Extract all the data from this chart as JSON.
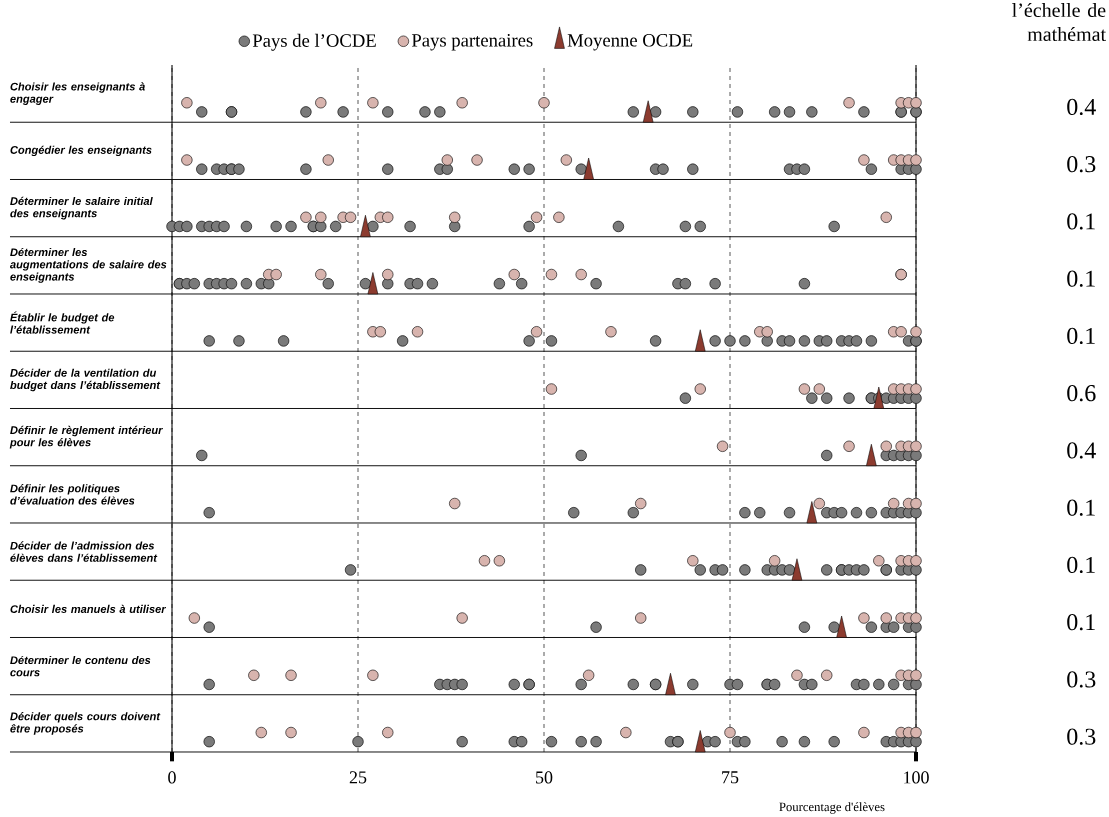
{
  "chart_data": {
    "type": "scatter",
    "orientation": "horizontal",
    "xlabel": "Pourcentage d'élèves",
    "categories": [
      "Choisir les enseignants à engager",
      "Congédier les enseignants",
      "Déterminer le salaire initial des enseignants",
      "Déterminer les augmentations de salaire des enseignants",
      "Établir le budget de l’établissement",
      "Décider de la ventilation du budget dans l’établissement",
      "Définir le règlement intérieur pour les élèves",
      "Définir les politiques d’évaluation des élèves",
      "Décider de l’admission des élèves dans l’établissement",
      "Choisir les manuels à utiliser",
      "Déterminer le contenu des cours",
      "Décider quels cours doivent être proposés"
    ],
    "xlim": [
      0,
      100
    ],
    "xticks": [
      0,
      25,
      50,
      75,
      100
    ],
    "grid": "x",
    "legend": "top",
    "annotations": [
      "l’échelle de mathémat",
      "0.4",
      "0.3",
      "0.1",
      "0.1",
      "0.1",
      "0.6",
      "0.4",
      "0.1",
      "0.1",
      "0.1",
      "0.3",
      "0.3"
    ],
    "series": [
      {
        "name": "Pays de l’OCDE",
        "color": "#7a7a7a",
        "marker": "circle",
        "x": [
          "Choisir les enseignants à engager",
          "Choisir les enseignants à engager",
          "Choisir les enseignants à engager",
          "Choisir les enseignants à engager",
          "Choisir les enseignants à engager",
          "Choisir les enseignants à engager",
          "Choisir les enseignants à engager",
          "Choisir les enseignants à engager",
          "Choisir les enseignants à engager",
          "Choisir les enseignants à engager",
          "Choisir les enseignants à engager",
          "Choisir les enseignants à engager",
          "Choisir les enseignants à engager",
          "Choisir les enseignants à engager",
          "Choisir les enseignants à engager",
          "Choisir les enseignants à engager",
          "Choisir les enseignants à engager",
          "Choisir les enseignants à engager",
          "Choisir les enseignants à engager",
          "Choisir les enseignants à engager",
          "Congédier les enseignants",
          "Congédier les enseignants",
          "Congédier les enseignants",
          "Congédier les enseignants",
          "Congédier les enseignants",
          "Congédier les enseignants",
          "Congédier les enseignants",
          "Congédier les enseignants",
          "Congédier les enseignants",
          "Congédier les enseignants",
          "Congédier les enseignants",
          "Congédier les enseignants",
          "Congédier les enseignants",
          "Congédier les enseignants",
          "Congédier les enseignants",
          "Congédier les enseignants",
          "Congédier les enseignants",
          "Congédier les enseignants",
          "Congédier les enseignants",
          "Congédier les enseignants",
          "Congédier les enseignants",
          "Congédier les enseignants",
          "Congédier les enseignants",
          "Déterminer le salaire initial des enseignants",
          "Déterminer le salaire initial des enseignants",
          "Déterminer le salaire initial des enseignants",
          "Déterminer le salaire initial des enseignants",
          "Déterminer le salaire initial des enseignants",
          "Déterminer le salaire initial des enseignants",
          "Déterminer le salaire initial des enseignants",
          "Déterminer le salaire initial des enseignants",
          "Déterminer le salaire initial des enseignants",
          "Déterminer le salaire initial des enseignants",
          "Déterminer le salaire initial des enseignants",
          "Déterminer le salaire initial des enseignants",
          "Déterminer le salaire initial des enseignants",
          "Déterminer le salaire initial des enseignants",
          "Déterminer le salaire initial des enseignants",
          "Déterminer le salaire initial des enseignants",
          "Déterminer le salaire initial des enseignants",
          "Déterminer le salaire initial des enseignants",
          "Déterminer le salaire initial des enseignants",
          "Déterminer le salaire initial des enseignants",
          "Déterminer le salaire initial des enseignants",
          "Déterminer le salaire initial des enseignants",
          "Déterminer les augmentations de salaire des enseignants",
          "Déterminer les augmentations de salaire des enseignants",
          "Déterminer les augmentations de salaire des enseignants",
          "Déterminer les augmentations de salaire des enseignants",
          "Déterminer les augmentations de salaire des enseignants",
          "Déterminer les augmentations de salaire des enseignants",
          "Déterminer les augmentations de salaire des enseignants",
          "Déterminer les augmentations de salaire des enseignants",
          "Déterminer les augmentations de salaire des enseignants",
          "Déterminer les augmentations de salaire des enseignants",
          "Déterminer les augmentations de salaire des enseignants",
          "Déterminer les augmentations de salaire des enseignants",
          "Déterminer les augmentations de salaire des enseignants",
          "Déterminer les augmentations de salaire des enseignants",
          "Déterminer les augmentations de salaire des enseignants",
          "Déterminer les augmentations de salaire des enseignants",
          "Déterminer les augmentations de salaire des enseignants",
          "Déterminer les augmentations de salaire des enseignants",
          "Déterminer les augmentations de salaire des enseignants",
          "Déterminer les augmentations de salaire des enseignants",
          "Déterminer les augmentations de salaire des enseignants",
          "Déterminer les augmentations de salaire des enseignants",
          "Déterminer les augmentations de salaire des enseignants",
          "Déterminer les augmentations de salaire des enseignants",
          "Établir le budget de l’établissement",
          "Établir le budget de l’établissement",
          "Établir le budget de l’établissement",
          "Établir le budget de l’établissement",
          "Établir le budget de l’établissement",
          "Établir le budget de l’établissement",
          "Établir le budget de l’établissement",
          "Établir le budget de l’établissement",
          "Établir le budget de l’établissement",
          "Établir le budget de l’établissement",
          "Établir le budget de l’établissement",
          "Établir le budget de l’établissement",
          "Établir le budget de l’établissement",
          "Établir le budget de l’établissement",
          "Établir le budget de l’établissement",
          "Établir le budget de l’établissement",
          "Établir le budget de l’établissement",
          "Établir le budget de l’établissement",
          "Établir le budget de l’établissement",
          "Établir le budget de l’établissement",
          "Établir le budget de l’établissement",
          "Établir le budget de l’établissement",
          "Établir le budget de l’établissement",
          "Décider de la ventilation du budget dans l’établissement",
          "Décider de la ventilation du budget dans l’établissement",
          "Décider de la ventilation du budget dans l’établissement",
          "Décider de la ventilation du budget dans l’établissement",
          "Décider de la ventilation du budget dans l’établissement",
          "Décider de la ventilation du budget dans l’établissement",
          "Décider de la ventilation du budget dans l’établissement",
          "Décider de la ventilation du budget dans l’établissement",
          "Décider de la ventilation du budget dans l’établissement",
          "Décider de la ventilation du budget dans l’établissement",
          "Décider de la ventilation du budget dans l’établissement",
          "Décider de la ventilation du budget dans l’établissement",
          "Définir le règlement intérieur pour les élèves",
          "Définir le règlement intérieur pour les élèves",
          "Définir le règlement intérieur pour les élèves",
          "Définir le règlement intérieur pour les élèves",
          "Définir le règlement intérieur pour les élèves",
          "Définir le règlement intérieur pour les élèves",
          "Définir le règlement intérieur pour les élèves",
          "Définir le règlement intérieur pour les élèves",
          "Définir les politiques d’évaluation des élèves",
          "Définir les politiques d’évaluation des élèves",
          "Définir les politiques d’évaluation des élèves",
          "Définir les politiques d’évaluation des élèves",
          "Définir les politiques d’évaluation des élèves",
          "Définir les politiques d’évaluation des élèves",
          "Définir les politiques d’évaluation des élèves",
          "Définir les politiques d’évaluation des élèves",
          "Définir les politiques d’évaluation des élèves",
          "Définir les politiques d’évaluation des élèves",
          "Définir les politiques d’évaluation des élèves",
          "Définir les politiques d’évaluation des élèves",
          "Définir les politiques d’évaluation des élèves",
          "Définir les politiques d’évaluation des élèves",
          "Définir les politiques d’évaluation des élèves",
          "Définir les politiques d’évaluation des élèves",
          "Décider de l’admission des élèves dans l’établissement",
          "Décider de l’admission des élèves dans l’établissement",
          "Décider de l’admission des élèves dans l’établissement",
          "Décider de l’admission des élèves dans l’établissement",
          "Décider de l’admission des élèves dans l’établissement",
          "Décider de l’admission des élèves dans l’établissement",
          "Décider de l’admission des élèves dans l’établissement",
          "Décider de l’admission des élèves dans l’établissement",
          "Décider de l’admission des élèves dans l’établissement",
          "Décider de l’admission des élèves dans l’établissement",
          "Décider de l’admission des élèves dans l’établissement",
          "Décider de l’admission des élèves dans l’établissement",
          "Décider de l’admission des élèves dans l’établissement",
          "Décider de l’admission des élèves dans l’établissement",
          "Décider de l’admission des élèves dans l’établissement",
          "Décider de l’admission des élèves dans l’établissement",
          "Décider de l’admission des élèves dans l’établissement",
          "Décider de l’admission des élèves dans l’établissement",
          "Décider de l’admission des élèves dans l’établissement",
          "Décider de l’admission des élèves dans l’établissement",
          "Décider de l’admission des élèves dans l’établissement",
          "Choisir les manuels à utiliser",
          "Choisir les manuels à utiliser",
          "Choisir les manuels à utiliser",
          "Choisir les manuels à utiliser",
          "Choisir les manuels à utiliser",
          "Choisir les manuels à utiliser",
          "Choisir les manuels à utiliser",
          "Choisir les manuels à utiliser",
          "Choisir les manuels à utiliser",
          "Déterminer le contenu des cours",
          "Déterminer le contenu des cours",
          "Déterminer le contenu des cours",
          "Déterminer le contenu des cours",
          "Déterminer le contenu des cours",
          "Déterminer le contenu des cours",
          "Déterminer le contenu des cours",
          "Déterminer le contenu des cours",
          "Déterminer le contenu des cours",
          "Déterminer le contenu des cours",
          "Déterminer le contenu des cours",
          "Déterminer le contenu des cours",
          "Déterminer le contenu des cours",
          "Déterminer le contenu des cours",
          "Déterminer le contenu des cours",
          "Déterminer le contenu des cours",
          "Déterminer le contenu des cours",
          "Déterminer le contenu des cours",
          "Déterminer le contenu des cours",
          "Déterminer le contenu des cours",
          "Déterminer le contenu des cours",
          "Déterminer le contenu des cours",
          "Déterminer le contenu des cours",
          "Déterminer le contenu des cours",
          "Déterminer le contenu des cours",
          "Déterminer le contenu des cours",
          "Décider quels cours doivent être proposés",
          "Décider quels cours doivent être proposés",
          "Décider quels cours doivent être proposés",
          "Décider quels cours doivent être proposés",
          "Décider quels cours doivent être proposés",
          "Décider quels cours doivent être proposés",
          "Décider quels cours doivent être proposés",
          "Décider quels cours doivent être proposés",
          "Décider quels cours doivent être proposés",
          "Décider quels cours doivent être proposés",
          "Décider quels cours doivent être proposés",
          "Décider quels cours doivent être proposés",
          "Décider quels cours doivent être proposés",
          "Décider quels cours doivent être proposés",
          "Décider quels cours doivent être proposés",
          "Décider quels cours doivent être proposés",
          "Décider quels cours doivent être proposés",
          "Décider quels cours doivent être proposés",
          "Décider quels cours doivent être proposés",
          "Décider quels cours doivent être proposés",
          "Décider quels cours doivent être proposés",
          "Décider quels cours doivent être proposés",
          "Décider quels cours doivent être proposés"
        ],
        "values": [
          4,
          8,
          8,
          18,
          23,
          29,
          34,
          36,
          62,
          65,
          70,
          76,
          81,
          83,
          86,
          93,
          98,
          98,
          100,
          100,
          4,
          6,
          7,
          8,
          8,
          9,
          18,
          29,
          36,
          37,
          46,
          48,
          55,
          65,
          66,
          70,
          83,
          84,
          85,
          94,
          98,
          99,
          100,
          0,
          1,
          2,
          4,
          5,
          6,
          7,
          10,
          14,
          16,
          19,
          19,
          20,
          22,
          27,
          32,
          38,
          48,
          60,
          69,
          71,
          89,
          1,
          1,
          2,
          3,
          5,
          6,
          7,
          8,
          10,
          12,
          13,
          21,
          26,
          29,
          32,
          33,
          35,
          44,
          47,
          57,
          68,
          69,
          73,
          85,
          5,
          9,
          15,
          31,
          48,
          51,
          65,
          73,
          75,
          77,
          80,
          82,
          83,
          85,
          87,
          88,
          90,
          91,
          92,
          94,
          99,
          100,
          100,
          69,
          86,
          88,
          91,
          94,
          94,
          95,
          96,
          97,
          98,
          99,
          100,
          4,
          55,
          88,
          96,
          97,
          98,
          99,
          100,
          5,
          54,
          62,
          77,
          79,
          83,
          88,
          89,
          90,
          92,
          94,
          96,
          97,
          98,
          99,
          100,
          24,
          63,
          71,
          73,
          74,
          77,
          80,
          81,
          82,
          83,
          88,
          90,
          90,
          91,
          92,
          93,
          96,
          96,
          98,
          99,
          100,
          5,
          57,
          85,
          89,
          94,
          96,
          97,
          99,
          100,
          5,
          36,
          37,
          38,
          39,
          46,
          48,
          48,
          55,
          62,
          65,
          65,
          70,
          75,
          76,
          80,
          80,
          81,
          85,
          86,
          92,
          93,
          95,
          97,
          99,
          100,
          5,
          25,
          39,
          46,
          47,
          51,
          55,
          57,
          67,
          68,
          68,
          72,
          73,
          76,
          77,
          82,
          85,
          89,
          96,
          97,
          98,
          99,
          100
        ]
      },
      {
        "name": "Pays partenaires",
        "color": "#d8b4ae",
        "marker": "circle",
        "x": [
          "Choisir les enseignants à engager",
          "Choisir les enseignants à engager",
          "Choisir les enseignants à engager",
          "Choisir les enseignants à engager",
          "Choisir les enseignants à engager",
          "Choisir les enseignants à engager",
          "Choisir les enseignants à engager",
          "Choisir les enseignants à engager",
          "Choisir les enseignants à engager",
          "Congédier les enseignants",
          "Congédier les enseignants",
          "Congédier les enseignants",
          "Congédier les enseignants",
          "Congédier les enseignants",
          "Congédier les enseignants",
          "Congédier les enseignants",
          "Congédier les enseignants",
          "Congédier les enseignants",
          "Congédier les enseignants",
          "Déterminer le salaire initial des enseignants",
          "Déterminer le salaire initial des enseignants",
          "Déterminer le salaire initial des enseignants",
          "Déterminer le salaire initial des enseignants",
          "Déterminer le salaire initial des enseignants",
          "Déterminer le salaire initial des enseignants",
          "Déterminer le salaire initial des enseignants",
          "Déterminer le salaire initial des enseignants",
          "Déterminer le salaire initial des enseignants",
          "Déterminer le salaire initial des enseignants",
          "Déterminer les augmentations de salaire des enseignants",
          "Déterminer les augmentations de salaire des enseignants",
          "Déterminer les augmentations de salaire des enseignants",
          "Déterminer les augmentations de salaire des enseignants",
          "Déterminer les augmentations de salaire des enseignants",
          "Déterminer les augmentations de salaire des enseignants",
          "Déterminer les augmentations de salaire des enseignants",
          "Déterminer les augmentations de salaire des enseignants",
          "Déterminer les augmentations de salaire des enseignants",
          "Établir le budget de l’établissement",
          "Établir le budget de l’établissement",
          "Établir le budget de l’établissement",
          "Établir le budget de l’établissement",
          "Établir le budget de l’établissement",
          "Établir le budget de l’établissement",
          "Établir le budget de l’établissement",
          "Établir le budget de l’établissement",
          "Établir le budget de l’établissement",
          "Établir le budget de l’établissement",
          "Décider de la ventilation du budget dans l’établissement",
          "Décider de la ventilation du budget dans l’établissement",
          "Décider de la ventilation du budget dans l’établissement",
          "Décider de la ventilation du budget dans l’établissement",
          "Décider de la ventilation du budget dans l’établissement",
          "Décider de la ventilation du budget dans l’établissement",
          "Décider de la ventilation du budget dans l’établissement",
          "Décider de la ventilation du budget dans l’établissement",
          "Définir le règlement intérieur pour les élèves",
          "Définir le règlement intérieur pour les élèves",
          "Définir le règlement intérieur pour les élèves",
          "Définir le règlement intérieur pour les élèves",
          "Définir le règlement intérieur pour les élèves",
          "Définir le règlement intérieur pour les élèves",
          "Définir les politiques d’évaluation des élèves",
          "Définir les politiques d’évaluation des élèves",
          "Définir les politiques d’évaluation des élèves",
          "Définir les politiques d’évaluation des élèves",
          "Définir les politiques d’évaluation des élèves",
          "Définir les politiques d’évaluation des élèves",
          "Décider de l’admission des élèves dans l’établissement",
          "Décider de l’admission des élèves dans l’établissement",
          "Décider de l’admission des élèves dans l’établissement",
          "Décider de l’admission des élèves dans l’établissement",
          "Décider de l’admission des élèves dans l’établissement",
          "Décider de l’admission des élèves dans l’établissement",
          "Décider de l’admission des élèves dans l’établissement",
          "Décider de l’admission des élèves dans l’établissement",
          "Choisir les manuels à utiliser",
          "Choisir les manuels à utiliser",
          "Choisir les manuels à utiliser",
          "Choisir les manuels à utiliser",
          "Choisir les manuels à utiliser",
          "Choisir les manuels à utiliser",
          "Choisir les manuels à utiliser",
          "Choisir les manuels à utiliser",
          "Déterminer le contenu des cours",
          "Déterminer le contenu des cours",
          "Déterminer le contenu des cours",
          "Déterminer le contenu des cours",
          "Déterminer le contenu des cours",
          "Déterminer le contenu des cours",
          "Déterminer le contenu des cours",
          "Déterminer le contenu des cours",
          "Déterminer le contenu des cours",
          "Décider quels cours doivent être proposés",
          "Décider quels cours doivent être proposés",
          "Décider quels cours doivent être proposés",
          "Décider quels cours doivent être proposés",
          "Décider quels cours doivent être proposés",
          "Décider quels cours doivent être proposés",
          "Décider quels cours doivent être proposés",
          "Décider quels cours doivent être proposés",
          "Décider quels cours doivent être proposés"
        ],
        "values": [
          2,
          20,
          27,
          39,
          50,
          91,
          98,
          99,
          100,
          2,
          21,
          37,
          41,
          53,
          93,
          97,
          98,
          99,
          100,
          18,
          20,
          23,
          24,
          28,
          29,
          38,
          49,
          52,
          96,
          13,
          14,
          20,
          29,
          46,
          51,
          55,
          98,
          98,
          27,
          28,
          33,
          49,
          59,
          79,
          80,
          97,
          98,
          100,
          51,
          71,
          85,
          87,
          97,
          98,
          99,
          100,
          74,
          91,
          96,
          98,
          99,
          100,
          38,
          63,
          87,
          97,
          99,
          100,
          42,
          44,
          70,
          81,
          95,
          98,
          99,
          100,
          3,
          39,
          63,
          93,
          96,
          98,
          99,
          100,
          11,
          16,
          27,
          56,
          84,
          88,
          98,
          99,
          100,
          12,
          16,
          29,
          61,
          75,
          93,
          98,
          99,
          100
        ]
      },
      {
        "name": "Moyenne OCDE",
        "color": "#8c3b2f",
        "marker": "triangle",
        "values": [
          64,
          56,
          26,
          27,
          71,
          95,
          94,
          86,
          84,
          90,
          67,
          71
        ]
      }
    ]
  }
}
